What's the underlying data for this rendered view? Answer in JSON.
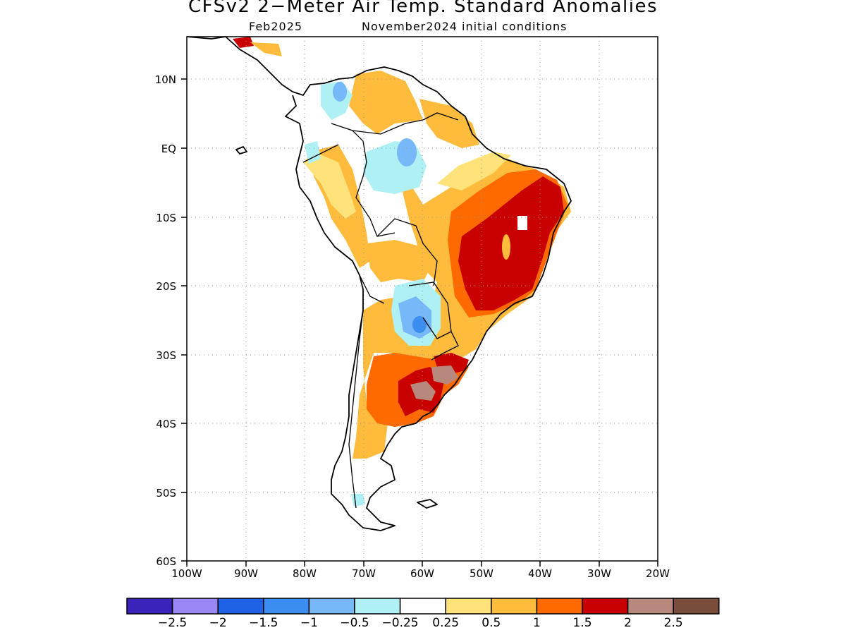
{
  "title": "CFSv2 2−Meter Air Temp. Standard Anomalies",
  "subtitle_left": "Feb2025",
  "subtitle_right": "November2024 initial conditions",
  "map": {
    "lat_labels": [
      "10N",
      "EQ",
      "10S",
      "20S",
      "30S",
      "40S",
      "50S",
      "60S"
    ],
    "lon_labels": [
      "100W",
      "90W",
      "80W",
      "70W",
      "60W",
      "50W",
      "40W",
      "30W",
      "20W"
    ],
    "grid": "dotted"
  },
  "colorbar": {
    "colors": [
      "#3a23b8",
      "#9b87f5",
      "#1f62e6",
      "#3b8ef0",
      "#77b8f8",
      "#aff0f5",
      "#ffffff",
      "#ffe27a",
      "#ffbb3c",
      "#ff6a00",
      "#c80000",
      "#b8887c",
      "#7a4c3c"
    ],
    "labels": [
      "−2.5",
      "−2",
      "−1.5",
      "−1",
      "−0.5",
      "−0.25",
      "0.25",
      "0.5",
      "1",
      "1.5",
      "2",
      "2.5"
    ]
  }
}
